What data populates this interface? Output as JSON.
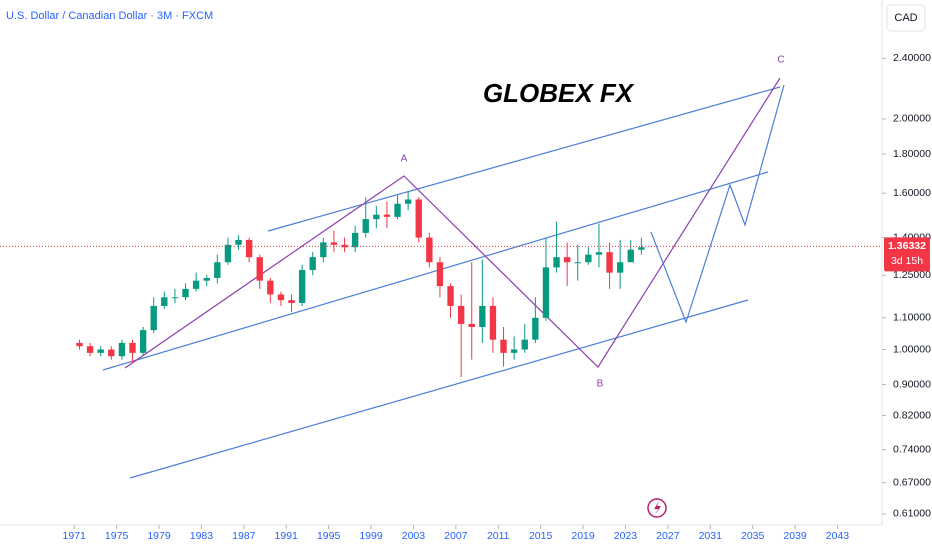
{
  "chart_data": {
    "type": "candlestick",
    "title": "U.S. Dollar / Canadian Dollar · 3M · FXCM",
    "currency": "CAD",
    "watermark": "GLOBEX FX",
    "annotations": [
      "A",
      "B",
      "C"
    ],
    "log_scale": true,
    "grid": false,
    "up_color": "#089981",
    "down_color": "#f23645",
    "x": [
      1971,
      1972,
      1973,
      1974,
      1975,
      1976,
      1977,
      1978,
      1979,
      1980,
      1981,
      1982,
      1983,
      1984,
      1985,
      1986,
      1987,
      1988,
      1989,
      1990,
      1991,
      1992,
      1993,
      1994,
      1995,
      1996,
      1997,
      1998,
      1999,
      2000,
      2001,
      2002,
      2003,
      2004,
      2005,
      2006,
      2007,
      2008,
      2009,
      2010,
      2011,
      2012,
      2013,
      2014,
      2015,
      2016,
      2017,
      2018,
      2019,
      2020,
      2021,
      2022,
      2023,
      2024
    ],
    "open": [
      1.02,
      1.01,
      0.99,
      1.0,
      0.98,
      1.02,
      0.99,
      1.06,
      1.14,
      1.17,
      1.17,
      1.2,
      1.23,
      1.24,
      1.3,
      1.37,
      1.39,
      1.32,
      1.23,
      1.18,
      1.16,
      1.15,
      1.27,
      1.32,
      1.38,
      1.37,
      1.36,
      1.42,
      1.48,
      1.5,
      1.49,
      1.55,
      1.57,
      1.4,
      1.3,
      1.21,
      1.14,
      1.08,
      1.07,
      1.14,
      1.03,
      0.99,
      1.0,
      1.03,
      1.1,
      1.28,
      1.32,
      1.3,
      1.3,
      1.33,
      1.34,
      1.26,
      1.3,
      1.35
    ],
    "high": [
      1.03,
      1.02,
      1.01,
      1.01,
      1.03,
      1.03,
      1.07,
      1.17,
      1.19,
      1.2,
      1.22,
      1.26,
      1.25,
      1.33,
      1.4,
      1.41,
      1.4,
      1.33,
      1.24,
      1.19,
      1.18,
      1.29,
      1.34,
      1.4,
      1.43,
      1.4,
      1.45,
      1.58,
      1.54,
      1.56,
      1.59,
      1.61,
      1.58,
      1.42,
      1.32,
      1.22,
      1.18,
      1.3,
      1.31,
      1.17,
      1.07,
      1.04,
      1.08,
      1.17,
      1.4,
      1.47,
      1.38,
      1.37,
      1.36,
      1.46,
      1.38,
      1.39,
      1.39,
      1.4
    ],
    "low": [
      1.0,
      0.98,
      0.98,
      0.97,
      0.97,
      0.96,
      0.98,
      1.05,
      1.13,
      1.15,
      1.16,
      1.19,
      1.21,
      1.22,
      1.29,
      1.35,
      1.3,
      1.2,
      1.15,
      1.14,
      1.12,
      1.14,
      1.25,
      1.3,
      1.34,
      1.34,
      1.34,
      1.4,
      1.44,
      1.44,
      1.48,
      1.52,
      1.38,
      1.28,
      1.17,
      1.1,
      0.92,
      0.97,
      1.02,
      0.99,
      0.95,
      0.97,
      0.99,
      1.02,
      1.09,
      1.26,
      1.21,
      1.23,
      1.29,
      1.28,
      1.2,
      1.2,
      1.31,
      1.33
    ],
    "close": [
      1.01,
      0.99,
      1.0,
      0.98,
      1.02,
      0.99,
      1.06,
      1.14,
      1.17,
      1.17,
      1.2,
      1.23,
      1.24,
      1.3,
      1.37,
      1.39,
      1.32,
      1.23,
      1.18,
      1.16,
      1.15,
      1.27,
      1.32,
      1.38,
      1.37,
      1.36,
      1.42,
      1.48,
      1.5,
      1.49,
      1.55,
      1.57,
      1.4,
      1.3,
      1.21,
      1.14,
      1.08,
      1.07,
      1.14,
      1.03,
      0.99,
      1.0,
      1.03,
      1.1,
      1.28,
      1.32,
      1.3,
      1.3,
      1.33,
      1.34,
      1.26,
      1.3,
      1.35,
      1.36
    ],
    "xlim": [
      1964,
      2047.2
    ],
    "ylim": [
      0.59,
      2.86
    ],
    "xticks": [
      1971,
      1975,
      1979,
      1983,
      1987,
      1991,
      1995,
      1999,
      2003,
      2007,
      2011,
      2015,
      2019,
      2023,
      2027,
      2031,
      2035,
      2039,
      2043
    ],
    "yticks": [
      {
        "value": 2.4,
        "label": "2.40000"
      },
      {
        "value": 2.0,
        "label": "2.00000"
      },
      {
        "value": 1.8,
        "label": "1.80000"
      },
      {
        "value": 1.6,
        "label": "1.60000"
      },
      {
        "value": 1.4,
        "label": "1.40000"
      },
      {
        "value": 1.25,
        "label": "1.25000"
      },
      {
        "value": 1.1,
        "label": "1.10000"
      },
      {
        "value": 1.0,
        "label": "1.00000"
      },
      {
        "value": 0.9,
        "label": "0.90000"
      },
      {
        "value": 0.82,
        "label": "0.82000"
      },
      {
        "value": 0.74,
        "label": "0.74000"
      },
      {
        "value": 0.67,
        "label": "0.67000"
      },
      {
        "value": 0.61,
        "label": "0.61000"
      }
    ],
    "last_price": 1.36332,
    "countdown": "3d 15h"
  }
}
